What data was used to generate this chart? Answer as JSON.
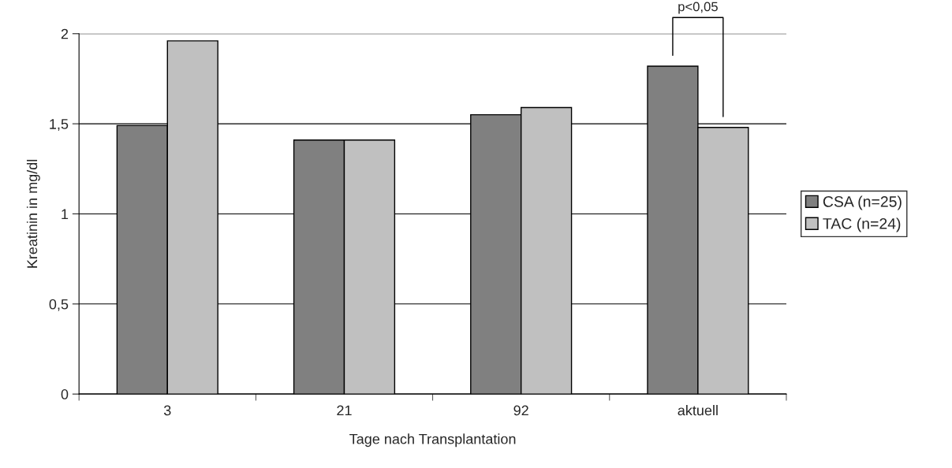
{
  "chart_data": {
    "type": "bar",
    "xlabel": "Tage nach Transplantation",
    "ylabel": "Kreatinin in mg/dl",
    "categories": [
      "3",
      "21",
      "92",
      "aktuell"
    ],
    "series": [
      {
        "name": "CSA (n=25)",
        "color": "#808080",
        "values": [
          1.49,
          1.41,
          1.55,
          1.82
        ]
      },
      {
        "name": "TAC (n=24)",
        "color": "#c0c0c0",
        "values": [
          1.96,
          1.41,
          1.59,
          1.48
        ]
      }
    ],
    "ylim": [
      0,
      2
    ],
    "yticks": [
      0,
      {
        "value": 0.5,
        "label": "0,5"
      },
      1,
      {
        "value": 1.5,
        "label": "1,5"
      },
      2
    ],
    "grid": "y",
    "legend": "right",
    "annotations": [
      "p<0,05"
    ]
  }
}
